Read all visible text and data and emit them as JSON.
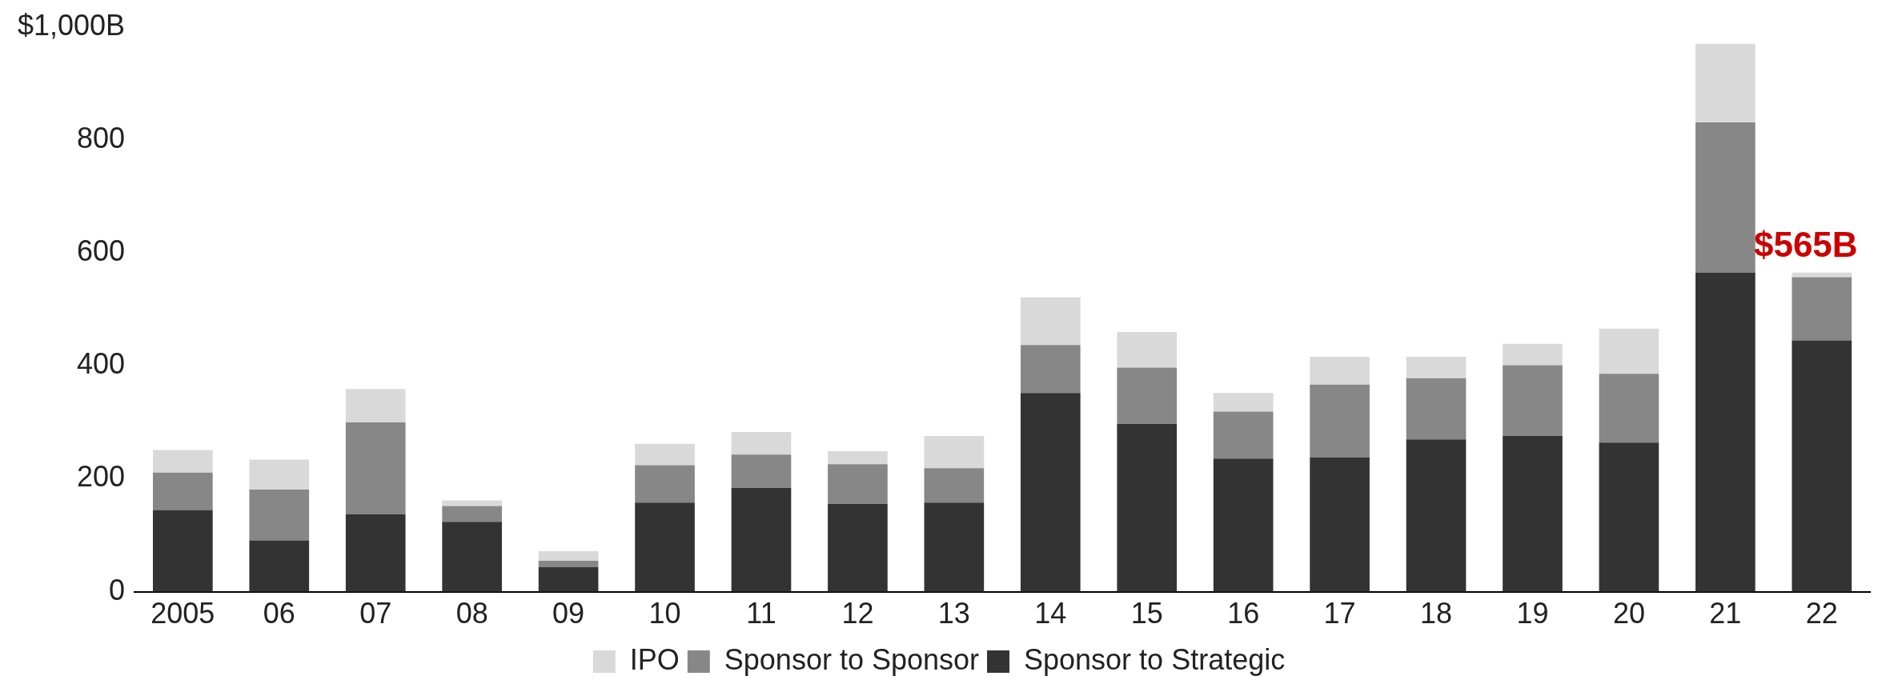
{
  "chart_data": {
    "type": "bar",
    "stacked": true,
    "categories": [
      "2005",
      "06",
      "07",
      "08",
      "09",
      "10",
      "11",
      "12",
      "13",
      "14",
      "15",
      "16",
      "17",
      "18",
      "19",
      "20",
      "21",
      "22"
    ],
    "series": [
      {
        "name": "Sponsor to Strategic",
        "color": "#333333",
        "values": [
          145,
          91,
          137,
          124,
          44,
          158,
          184,
          156,
          158,
          352,
          297,
          236,
          238,
          270,
          276,
          264,
          565,
          445
        ]
      },
      {
        "name": "Sponsor to Sponsor",
        "color": "#878787",
        "values": [
          66,
          90,
          163,
          28,
          11,
          66,
          59,
          70,
          61,
          85,
          100,
          83,
          129,
          108,
          125,
          122,
          266,
          112
        ]
      },
      {
        "name": "IPO",
        "color": "#d9d9d9",
        "values": [
          40,
          53,
          59,
          10,
          17,
          38,
          40,
          23,
          57,
          84,
          63,
          33,
          49,
          38,
          38,
          80,
          139,
          8
        ]
      }
    ],
    "ylim": [
      0,
      1000
    ],
    "yticks": [
      0,
      200,
      400,
      600,
      800,
      {
        "value": 1000,
        "label": "$1,000B"
      }
    ],
    "grid": false,
    "legend": "bottom",
    "annotations": [
      {
        "text": "$565B",
        "x": "22",
        "y": 565
      }
    ]
  }
}
